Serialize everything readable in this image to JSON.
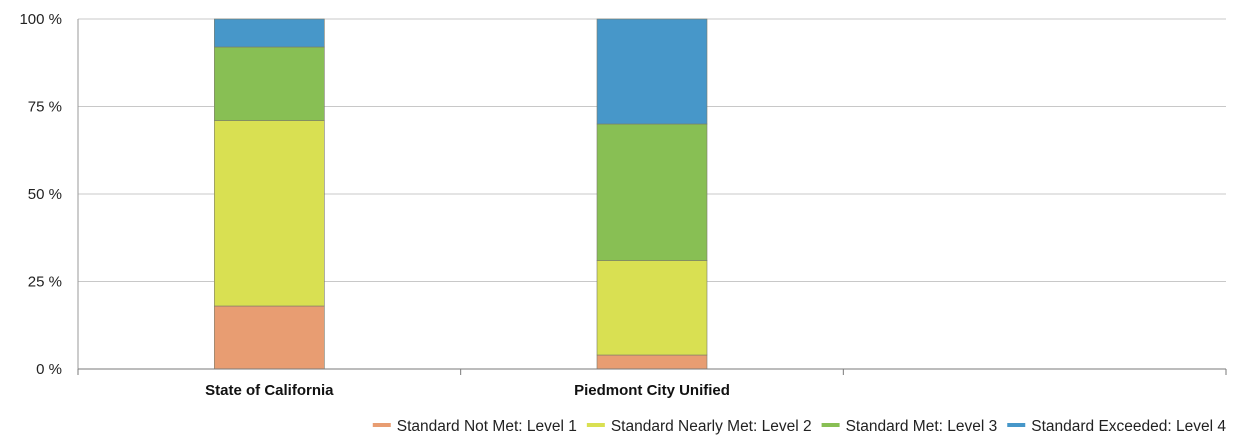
{
  "chart_data": {
    "type": "bar",
    "stacked": true,
    "categories": [
      "State of California",
      "Piedmont City Unified",
      ""
    ],
    "series": [
      {
        "name": "Standard Not Met: Level 1",
        "color": "#e89d72",
        "values": [
          18,
          4,
          null
        ]
      },
      {
        "name": "Standard Nearly Met: Level 2",
        "color": "#d9e052",
        "values": [
          53,
          27,
          null
        ]
      },
      {
        "name": "Standard Met: Level 3",
        "color": "#88bf54",
        "values": [
          21,
          39,
          null
        ]
      },
      {
        "name": "Standard Exceeded: Level 4",
        "color": "#4797c9",
        "values": [
          8,
          30,
          null
        ]
      }
    ],
    "ylim": [
      0,
      100
    ],
    "yticks": [
      "0 %",
      "25 %",
      "50 %",
      "75 %",
      "100 %"
    ],
    "ytick_values": [
      0,
      25,
      50,
      75,
      100
    ],
    "grid": true,
    "legend_position": "bottom"
  }
}
